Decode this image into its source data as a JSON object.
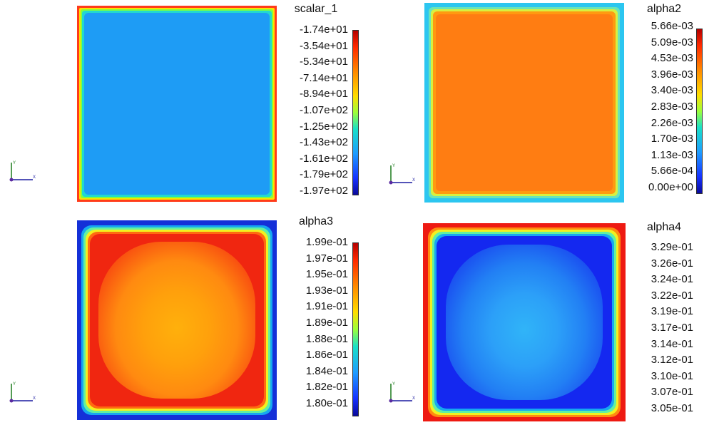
{
  "chart_data": [
    {
      "type": "heatmap",
      "title": "scalar_1",
      "colorbar_ticks": [
        "-1.74e+01",
        "-3.54e+01",
        "-5.34e+01",
        "-7.14e+01",
        "-8.94e+01",
        "-1.07e+02",
        "-1.25e+02",
        "-1.43e+02",
        "-1.61e+02",
        "-1.79e+02",
        "-1.97e+02"
      ],
      "range": [
        -197,
        -17.4
      ],
      "interior_color": "#1e9cf5",
      "border_colors": [
        "#ffe000",
        "#7fff40",
        "#22d8d0",
        "#1e9cf5"
      ],
      "corner_color": "#ff3b1a",
      "colorbar_visible": true
    },
    {
      "type": "heatmap",
      "title": "alpha2",
      "colorbar_ticks": [
        "5.66e-03",
        "5.09e-03",
        "4.53e-03",
        "3.96e-03",
        "3.40e-03",
        "2.83e-03",
        "2.26e-03",
        "1.70e-03",
        "1.13e-03",
        "5.66e-04",
        "0.00e+00"
      ],
      "range": [
        0,
        0.00566
      ],
      "interior_color": "#ff7d12",
      "border_colors": [
        "#2cc6f0",
        "#6be4b8",
        "#d8f040",
        "#ff9a10"
      ],
      "colorbar_visible": true
    },
    {
      "type": "heatmap",
      "title": "alpha3",
      "colorbar_ticks": [
        "1.99e-01",
        "1.97e-01",
        "1.95e-01",
        "1.93e-01",
        "1.91e-01",
        "1.89e-01",
        "1.88e-01",
        "1.86e-01",
        "1.84e-01",
        "1.82e-01",
        "1.80e-01"
      ],
      "range": [
        0.18,
        0.199
      ],
      "interior_color": "#f02610",
      "center_color": "#ffb00c",
      "border_colors": [
        "#1430d8",
        "#16a8f0",
        "#62f0a0",
        "#f2f020",
        "#ff6a10"
      ],
      "colorbar_visible": true
    },
    {
      "type": "heatmap",
      "title": "alpha4",
      "colorbar_ticks": [
        "3.29e-01",
        "3.26e-01",
        "3.24e-01",
        "3.22e-01",
        "3.19e-01",
        "3.17e-01",
        "3.14e-01",
        "3.12e-01",
        "3.10e-01",
        "3.07e-01",
        "3.05e-01"
      ],
      "range": [
        0.305,
        0.329
      ],
      "interior_color": "#1428f0",
      "center_color": "#30b4f8",
      "border_colors": [
        "#ee1a12",
        "#ff8a10",
        "#f2f020",
        "#62f0a0",
        "#16a8f0"
      ],
      "colorbar_visible": false
    }
  ],
  "axis_triad": {
    "x_label": "X",
    "y_label": "Y",
    "x_color": "#1a1aa0",
    "y_color": "#1a7a1a",
    "origin_color": "#5a2aa0"
  }
}
